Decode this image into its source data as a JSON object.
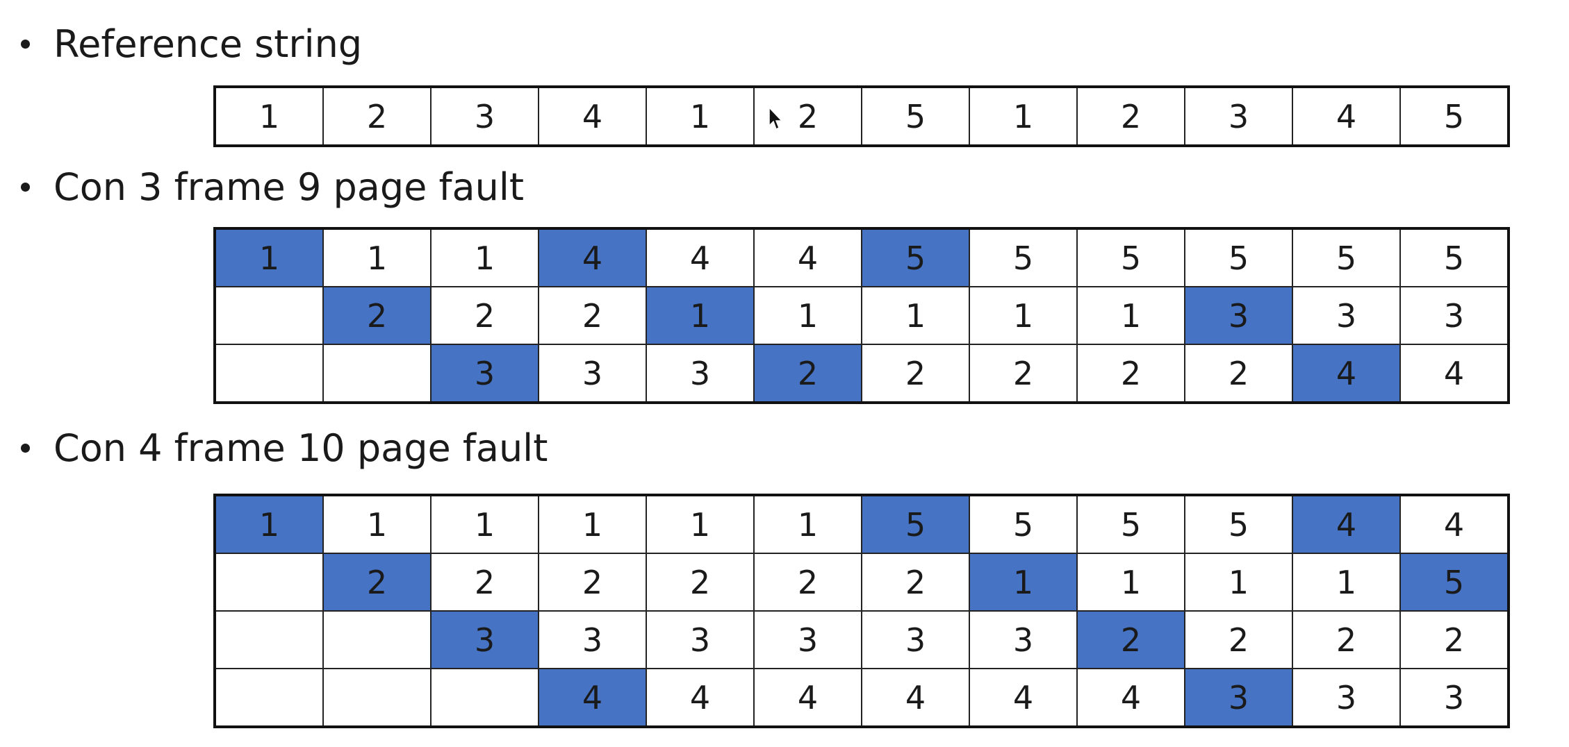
{
  "bullets": {
    "reference": "Reference string",
    "three_frames": "Con 3 frame 9 page fault",
    "four_frames": "Con 4 frame 10 page fault"
  },
  "reference_string": [
    "1",
    "2",
    "3",
    "4",
    "1",
    "2",
    "5",
    "1",
    "2",
    "3",
    "4",
    "5"
  ],
  "three_frame_table": {
    "rows": [
      [
        "1",
        "1",
        "1",
        "4",
        "4",
        "4",
        "5",
        "5",
        "5",
        "5",
        "5",
        "5"
      ],
      [
        "",
        "2",
        "2",
        "2",
        "1",
        "1",
        "1",
        "1",
        "1",
        "3",
        "3",
        "3"
      ],
      [
        "",
        "",
        "3",
        "3",
        "3",
        "2",
        "2",
        "2",
        "2",
        "2",
        "4",
        "4"
      ]
    ],
    "faults": [
      [
        0,
        0
      ],
      [
        0,
        3
      ],
      [
        0,
        6
      ],
      [
        1,
        1
      ],
      [
        1,
        4
      ],
      [
        1,
        9
      ],
      [
        2,
        2
      ],
      [
        2,
        5
      ],
      [
        2,
        10
      ]
    ]
  },
  "four_frame_table": {
    "rows": [
      [
        "1",
        "1",
        "1",
        "1",
        "1",
        "1",
        "5",
        "5",
        "5",
        "5",
        "4",
        "4"
      ],
      [
        "",
        "2",
        "2",
        "2",
        "2",
        "2",
        "2",
        "1",
        "1",
        "1",
        "1",
        "5"
      ],
      [
        "",
        "",
        "3",
        "3",
        "3",
        "3",
        "3",
        "3",
        "2",
        "2",
        "2",
        "2"
      ],
      [
        "",
        "",
        "",
        "4",
        "4",
        "4",
        "4",
        "4",
        "4",
        "3",
        "3",
        "3"
      ]
    ],
    "faults": [
      [
        0,
        0
      ],
      [
        0,
        6
      ],
      [
        0,
        10
      ],
      [
        1,
        1
      ],
      [
        1,
        7
      ],
      [
        1,
        11
      ],
      [
        2,
        2
      ],
      [
        2,
        8
      ],
      [
        3,
        3
      ],
      [
        3,
        9
      ]
    ]
  },
  "colors": {
    "fault_highlight": "#4673c4",
    "border": "#111111",
    "text": "#1a1a1a"
  }
}
